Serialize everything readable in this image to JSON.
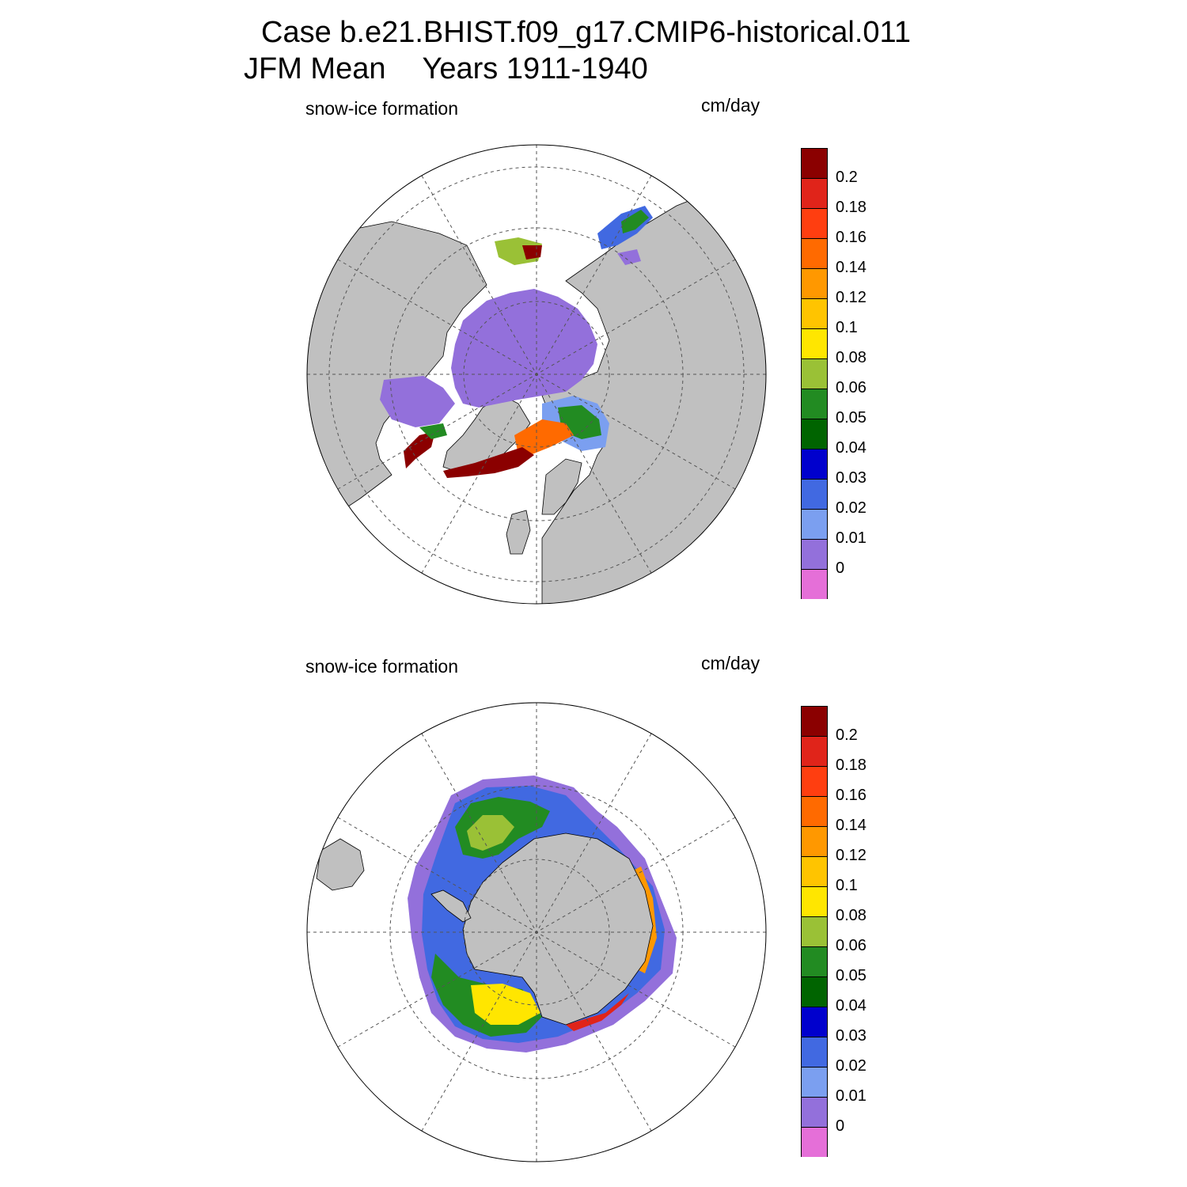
{
  "figure": {
    "title_line1": "Case b.e21.BHIST.f09_g17.CMIP6-historical.011",
    "title_line2_season": "JFM Mean",
    "title_line2_years": "Years 1911-1940"
  },
  "panels": [
    {
      "id": "north",
      "hemisphere": "NH",
      "left_label": "snow-ice formation",
      "units": "cm/day"
    },
    {
      "id": "south",
      "hemisphere": "SH",
      "left_label": "snow-ice formation",
      "units": "cm/day"
    }
  ],
  "colorbar": {
    "levels": [
      "0.2",
      "0.18",
      "0.16",
      "0.14",
      "0.12",
      "0.1",
      "0.08",
      "0.06",
      "0.05",
      "0.04",
      "0.03",
      "0.02",
      "0.01",
      "0"
    ],
    "colors": [
      "#8b0000",
      "#e0241a",
      "#ff3e10",
      "#ff6a00",
      "#ff9800",
      "#ffc400",
      "#ffe600",
      "#9ac136",
      "#228b22",
      "#006400",
      "#0000cd",
      "#4169e1",
      "#7b9ff0",
      "#9370db",
      "#e56fd8"
    ]
  },
  "map_colors": {
    "land": "#c0c0c0",
    "ocean_no_data": "#ffffff",
    "grid": "#555555"
  }
}
